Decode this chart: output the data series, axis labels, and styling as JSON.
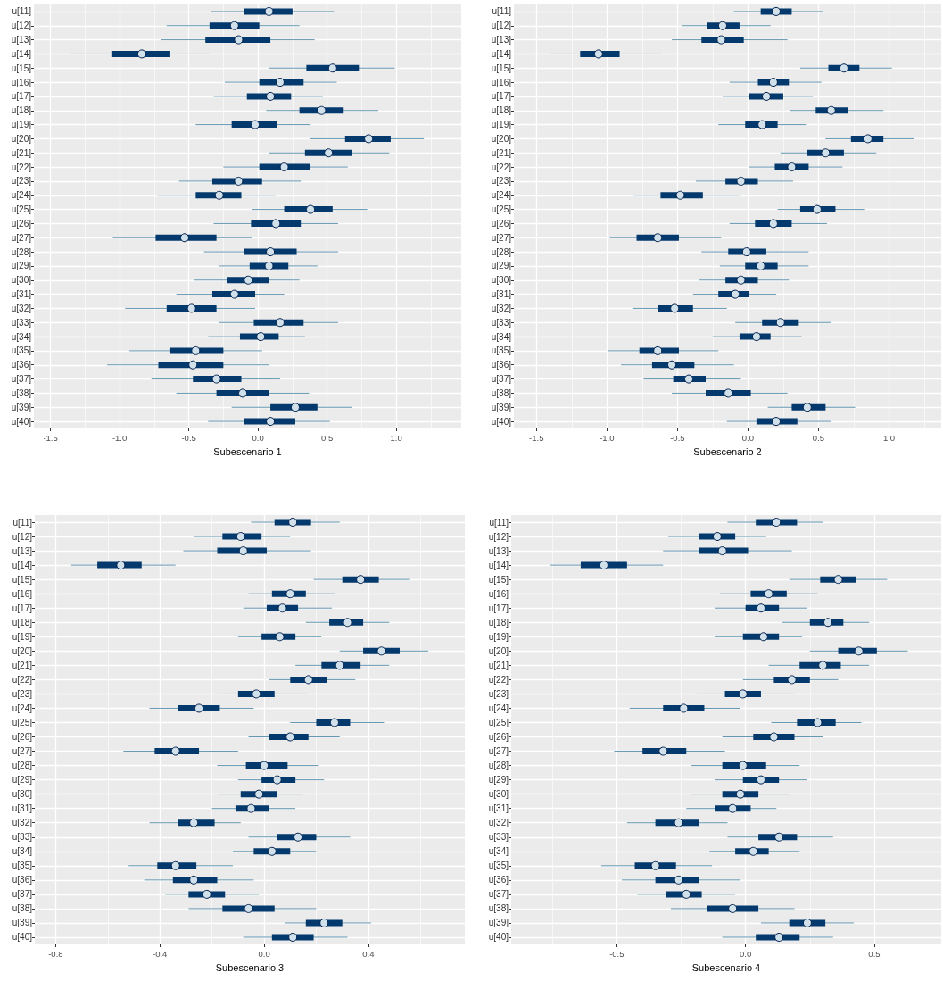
{
  "chart_data": [
    {
      "type": "box",
      "orientation": "horizontal",
      "xlabel": "Subescenario 1",
      "color": "#03396c",
      "grid": true,
      "categories": [
        "u[11]",
        "u[12]",
        "u[13]",
        "u[14]",
        "u[15]",
        "u[16]",
        "u[17]",
        "u[18]",
        "u[19]",
        "u[20]",
        "u[21]",
        "u[22]",
        "u[23]",
        "u[24]",
        "u[25]",
        "u[26]",
        "u[27]",
        "u[28]",
        "u[29]",
        "u[30]",
        "u[31]",
        "u[32]",
        "u[33]",
        "u[34]",
        "u[35]",
        "u[36]",
        "u[37]",
        "u[38]",
        "u[39]",
        "u[40]"
      ],
      "xlim": [
        -1.62,
        1.47
      ],
      "xticks": [
        -1.5,
        {
          "value": -1,
          "label": "-1.0"
        },
        -0.5,
        {
          "value": 0,
          "label": "0.0"
        },
        0.5,
        {
          "value": 1,
          "label": "1.0"
        }
      ],
      "boxes": [
        {
          "low": -0.34,
          "q1": -0.1,
          "median": 0.08,
          "q3": 0.25,
          "high": 0.55
        },
        {
          "low": -0.66,
          "q1": -0.35,
          "median": -0.17,
          "q3": 0.01,
          "high": 0.3
        },
        {
          "low": -0.7,
          "q1": -0.38,
          "median": -0.14,
          "q3": 0.09,
          "high": 0.41
        },
        {
          "low": -1.36,
          "q1": -1.06,
          "median": -0.84,
          "q3": -0.64,
          "high": -0.35
        },
        {
          "low": 0.08,
          "q1": 0.35,
          "median": 0.54,
          "q3": 0.73,
          "high": 0.99
        },
        {
          "low": -0.24,
          "q1": 0.01,
          "median": 0.16,
          "q3": 0.33,
          "high": 0.57
        },
        {
          "low": -0.32,
          "q1": -0.08,
          "median": 0.09,
          "q3": 0.24,
          "high": 0.47
        },
        {
          "low": 0.06,
          "q1": 0.3,
          "median": 0.46,
          "q3": 0.62,
          "high": 0.87
        },
        {
          "low": -0.45,
          "q1": -0.19,
          "median": -0.02,
          "q3": 0.14,
          "high": 0.38
        },
        {
          "low": 0.38,
          "q1": 0.63,
          "median": 0.8,
          "q3": 0.96,
          "high": 1.2
        },
        {
          "low": 0.08,
          "q1": 0.34,
          "median": 0.51,
          "q3": 0.68,
          "high": 0.95
        },
        {
          "low": -0.25,
          "q1": 0.01,
          "median": 0.19,
          "q3": 0.38,
          "high": 0.65
        },
        {
          "low": -0.57,
          "q1": -0.33,
          "median": -0.14,
          "q3": 0.03,
          "high": 0.31
        },
        {
          "low": -0.73,
          "q1": -0.45,
          "median": -0.28,
          "q3": -0.12,
          "high": 0.13
        },
        {
          "low": -0.04,
          "q1": 0.19,
          "median": 0.38,
          "q3": 0.54,
          "high": 0.79
        },
        {
          "low": -0.32,
          "q1": -0.05,
          "median": 0.13,
          "q3": 0.31,
          "high": 0.58
        },
        {
          "low": -1.05,
          "q1": -0.74,
          "median": -0.53,
          "q3": -0.3,
          "high": -0.04
        },
        {
          "low": -0.39,
          "q1": -0.1,
          "median": 0.09,
          "q3": 0.28,
          "high": 0.58
        },
        {
          "low": -0.28,
          "q1": -0.06,
          "median": 0.08,
          "q3": 0.22,
          "high": 0.43
        },
        {
          "low": -0.46,
          "q1": -0.22,
          "median": -0.07,
          "q3": 0.08,
          "high": 0.3
        },
        {
          "low": -0.59,
          "q1": -0.33,
          "median": -0.17,
          "q3": -0.02,
          "high": 0.19
        },
        {
          "low": -0.96,
          "q1": -0.66,
          "median": -0.48,
          "q3": -0.3,
          "high": -0.02
        },
        {
          "low": -0.28,
          "q1": -0.03,
          "median": 0.16,
          "q3": 0.33,
          "high": 0.58
        },
        {
          "low": -0.36,
          "q1": -0.13,
          "median": 0.02,
          "q3": 0.15,
          "high": 0.34
        },
        {
          "low": -0.93,
          "q1": -0.64,
          "median": -0.45,
          "q3": -0.25,
          "high": 0.03
        },
        {
          "low": -1.09,
          "q1": -0.72,
          "median": -0.47,
          "q3": -0.25,
          "high": 0.08
        },
        {
          "low": -0.77,
          "q1": -0.47,
          "median": -0.3,
          "q3": -0.12,
          "high": 0.16
        },
        {
          "low": -0.59,
          "q1": -0.3,
          "median": -0.11,
          "q3": 0.08,
          "high": 0.37
        },
        {
          "low": -0.19,
          "q1": 0.09,
          "median": 0.27,
          "q3": 0.43,
          "high": 0.68
        },
        {
          "low": -0.36,
          "q1": -0.1,
          "median": 0.09,
          "q3": 0.27,
          "high": 0.52
        }
      ]
    },
    {
      "type": "box",
      "orientation": "horizontal",
      "xlabel": "Subescenario 2",
      "color": "#03396c",
      "grid": true,
      "categories": [
        "u[11]",
        "u[12]",
        "u[13]",
        "u[14]",
        "u[15]",
        "u[16]",
        "u[17]",
        "u[18]",
        "u[19]",
        "u[20]",
        "u[21]",
        "u[22]",
        "u[23]",
        "u[24]",
        "u[25]",
        "u[26]",
        "u[27]",
        "u[28]",
        "u[29]",
        "u[30]",
        "u[31]",
        "u[32]",
        "u[33]",
        "u[34]",
        "u[35]",
        "u[36]",
        "u[37]",
        "u[38]",
        "u[39]",
        "u[40]"
      ],
      "xlim": [
        -1.66,
        1.37
      ],
      "xticks": [
        -1.5,
        {
          "value": -1,
          "label": "-1.0"
        },
        -0.5,
        {
          "value": 0,
          "label": "0.0"
        },
        0.5,
        {
          "value": 1,
          "label": "1.0"
        }
      ],
      "boxes": [
        {
          "low": -0.1,
          "q1": 0.09,
          "median": 0.2,
          "q3": 0.31,
          "high": 0.53
        },
        {
          "low": -0.47,
          "q1": -0.29,
          "median": -0.18,
          "q3": -0.06,
          "high": 0.16
        },
        {
          "low": -0.54,
          "q1": -0.33,
          "median": -0.19,
          "q3": -0.03,
          "high": 0.28
        },
        {
          "low": -1.4,
          "q1": -1.19,
          "median": -1.06,
          "q3": -0.91,
          "high": -0.61
        },
        {
          "low": 0.37,
          "q1": 0.57,
          "median": 0.68,
          "q3": 0.79,
          "high": 1.02
        },
        {
          "low": -0.13,
          "q1": 0.07,
          "median": 0.18,
          "q3": 0.29,
          "high": 0.52
        },
        {
          "low": -0.18,
          "q1": 0.01,
          "median": 0.13,
          "q3": 0.25,
          "high": 0.46
        },
        {
          "low": 0.3,
          "q1": 0.48,
          "median": 0.59,
          "q3": 0.71,
          "high": 0.96
        },
        {
          "low": -0.21,
          "q1": -0.02,
          "median": 0.1,
          "q3": 0.21,
          "high": 0.41
        },
        {
          "low": 0.55,
          "q1": 0.73,
          "median": 0.85,
          "q3": 0.96,
          "high": 1.18
        },
        {
          "low": 0.23,
          "q1": 0.42,
          "median": 0.55,
          "q3": 0.68,
          "high": 0.91
        },
        {
          "low": 0.01,
          "q1": 0.19,
          "median": 0.31,
          "q3": 0.43,
          "high": 0.67
        },
        {
          "low": -0.37,
          "q1": -0.16,
          "median": -0.05,
          "q3": 0.07,
          "high": 0.32
        },
        {
          "low": -0.81,
          "q1": -0.62,
          "median": -0.48,
          "q3": -0.32,
          "high": -0.05
        },
        {
          "low": 0.21,
          "q1": 0.37,
          "median": 0.49,
          "q3": 0.62,
          "high": 0.83
        },
        {
          "low": -0.13,
          "q1": 0.05,
          "median": 0.18,
          "q3": 0.31,
          "high": 0.56
        },
        {
          "low": -0.98,
          "q1": -0.79,
          "median": -0.64,
          "q3": -0.49,
          "high": -0.19
        },
        {
          "low": -0.33,
          "q1": -0.14,
          "median": -0.01,
          "q3": 0.13,
          "high": 0.43
        },
        {
          "low": -0.2,
          "q1": -0.02,
          "median": 0.09,
          "q3": 0.21,
          "high": 0.43
        },
        {
          "low": -0.35,
          "q1": -0.16,
          "median": -0.05,
          "q3": 0.07,
          "high": 0.29
        },
        {
          "low": -0.39,
          "q1": -0.21,
          "median": -0.09,
          "q3": 0.01,
          "high": 0.2
        },
        {
          "low": -0.82,
          "q1": -0.64,
          "median": -0.52,
          "q3": -0.39,
          "high": -0.15
        },
        {
          "low": -0.09,
          "q1": 0.1,
          "median": 0.23,
          "q3": 0.36,
          "high": 0.59
        },
        {
          "low": -0.25,
          "q1": -0.06,
          "median": 0.06,
          "q3": 0.16,
          "high": 0.38
        },
        {
          "low": -0.99,
          "q1": -0.77,
          "median": -0.64,
          "q3": -0.49,
          "high": -0.21
        },
        {
          "low": -0.9,
          "q1": -0.68,
          "median": -0.54,
          "q3": -0.38,
          "high": -0.1
        },
        {
          "low": -0.74,
          "q1": -0.53,
          "median": -0.42,
          "q3": -0.3,
          "high": -0.05
        },
        {
          "low": -0.54,
          "q1": -0.3,
          "median": -0.14,
          "q3": 0.02,
          "high": 0.28
        },
        {
          "low": 0.14,
          "q1": 0.31,
          "median": 0.42,
          "q3": 0.55,
          "high": 0.76
        },
        {
          "low": -0.15,
          "q1": 0.06,
          "median": 0.2,
          "q3": 0.35,
          "high": 0.59
        }
      ]
    },
    {
      "type": "box",
      "orientation": "horizontal",
      "xlabel": "Subescenario 3",
      "color": "#03396c",
      "grid": true,
      "categories": [
        "u[11]",
        "u[12]",
        "u[13]",
        "u[14]",
        "u[15]",
        "u[16]",
        "u[17]",
        "u[18]",
        "u[19]",
        "u[20]",
        "u[21]",
        "u[22]",
        "u[23]",
        "u[24]",
        "u[25]",
        "u[26]",
        "u[27]",
        "u[28]",
        "u[29]",
        "u[30]",
        "u[31]",
        "u[32]",
        "u[33]",
        "u[34]",
        "u[35]",
        "u[36]",
        "u[37]",
        "u[38]",
        "u[39]",
        "u[40]"
      ],
      "xlim": [
        -0.88,
        0.77
      ],
      "xticks": [
        -0.8,
        -0.4,
        {
          "value": 0,
          "label": "0.0"
        },
        0.4
      ],
      "boxes": [
        {
          "low": -0.05,
          "q1": 0.04,
          "median": 0.11,
          "q3": 0.18,
          "high": 0.29
        },
        {
          "low": -0.27,
          "q1": -0.16,
          "median": -0.09,
          "q3": -0.01,
          "high": 0.1
        },
        {
          "low": -0.31,
          "q1": -0.18,
          "median": -0.08,
          "q3": 0.01,
          "high": 0.18
        },
        {
          "low": -0.74,
          "q1": -0.64,
          "median": -0.55,
          "q3": -0.47,
          "high": -0.34
        },
        {
          "low": 0.19,
          "q1": 0.3,
          "median": 0.37,
          "q3": 0.44,
          "high": 0.56
        },
        {
          "low": -0.06,
          "q1": 0.03,
          "median": 0.1,
          "q3": 0.16,
          "high": 0.27
        },
        {
          "low": -0.08,
          "q1": 0.01,
          "median": 0.07,
          "q3": 0.13,
          "high": 0.26
        },
        {
          "low": 0.16,
          "q1": 0.25,
          "median": 0.32,
          "q3": 0.38,
          "high": 0.48
        },
        {
          "low": -0.1,
          "q1": -0.01,
          "median": 0.06,
          "q3": 0.12,
          "high": 0.22
        },
        {
          "low": 0.29,
          "q1": 0.38,
          "median": 0.45,
          "q3": 0.52,
          "high": 0.63
        },
        {
          "low": 0.12,
          "q1": 0.22,
          "median": 0.29,
          "q3": 0.37,
          "high": 0.48
        },
        {
          "low": 0.02,
          "q1": 0.1,
          "median": 0.17,
          "q3": 0.24,
          "high": 0.35
        },
        {
          "low": -0.18,
          "q1": -0.1,
          "median": -0.03,
          "q3": 0.04,
          "high": 0.17
        },
        {
          "low": -0.44,
          "q1": -0.33,
          "median": -0.25,
          "q3": -0.17,
          "high": -0.04
        },
        {
          "low": 0.1,
          "q1": 0.2,
          "median": 0.27,
          "q3": 0.33,
          "high": 0.46
        },
        {
          "low": -0.06,
          "q1": 0.02,
          "median": 0.1,
          "q3": 0.17,
          "high": 0.29
        },
        {
          "low": -0.54,
          "q1": -0.42,
          "median": -0.34,
          "q3": -0.25,
          "high": -0.1
        },
        {
          "low": -0.18,
          "q1": -0.07,
          "median": 0.0,
          "q3": 0.09,
          "high": 0.21
        },
        {
          "low": -0.1,
          "q1": -0.01,
          "median": 0.05,
          "q3": 0.12,
          "high": 0.23
        },
        {
          "low": -0.18,
          "q1": -0.09,
          "median": -0.02,
          "q3": 0.05,
          "high": 0.15
        },
        {
          "low": -0.2,
          "q1": -0.11,
          "median": -0.05,
          "q3": 0.02,
          "high": 0.12
        },
        {
          "low": -0.44,
          "q1": -0.33,
          "median": -0.27,
          "q3": -0.19,
          "high": -0.09
        },
        {
          "low": -0.06,
          "q1": 0.05,
          "median": 0.13,
          "q3": 0.2,
          "high": 0.33
        },
        {
          "low": -0.12,
          "q1": -0.04,
          "median": 0.03,
          "q3": 0.1,
          "high": 0.2
        },
        {
          "low": -0.52,
          "q1": -0.41,
          "median": -0.34,
          "q3": -0.26,
          "high": -0.12
        },
        {
          "low": -0.46,
          "q1": -0.35,
          "median": -0.27,
          "q3": -0.18,
          "high": -0.04
        },
        {
          "low": -0.38,
          "q1": -0.29,
          "median": -0.22,
          "q3": -0.15,
          "high": -0.02
        },
        {
          "low": -0.29,
          "q1": -0.16,
          "median": -0.06,
          "q3": 0.04,
          "high": 0.2
        },
        {
          "low": 0.08,
          "q1": 0.16,
          "median": 0.23,
          "q3": 0.3,
          "high": 0.41
        },
        {
          "low": -0.08,
          "q1": 0.03,
          "median": 0.11,
          "q3": 0.19,
          "high": 0.32
        }
      ]
    },
    {
      "type": "box",
      "orientation": "horizontal",
      "xlabel": "Subescenario 4",
      "color": "#03396c",
      "grid": true,
      "categories": [
        "u[11]",
        "u[12]",
        "u[13]",
        "u[14]",
        "u[15]",
        "u[16]",
        "u[17]",
        "u[18]",
        "u[19]",
        "u[20]",
        "u[21]",
        "u[22]",
        "u[23]",
        "u[24]",
        "u[25]",
        "u[26]",
        "u[27]",
        "u[28]",
        "u[29]",
        "u[30]",
        "u[31]",
        "u[32]",
        "u[33]",
        "u[34]",
        "u[35]",
        "u[36]",
        "u[37]",
        "u[38]",
        "u[39]",
        "u[40]"
      ],
      "xlim": [
        -0.91,
        0.76
      ],
      "xticks": [
        -0.5,
        {
          "value": 0,
          "label": "0.0"
        },
        0.5
      ],
      "boxes": [
        {
          "low": -0.07,
          "q1": 0.04,
          "median": 0.12,
          "q3": 0.2,
          "high": 0.3
        },
        {
          "low": -0.3,
          "q1": -0.18,
          "median": -0.11,
          "q3": -0.04,
          "high": 0.08
        },
        {
          "low": -0.32,
          "q1": -0.18,
          "median": -0.09,
          "q3": 0.01,
          "high": 0.18
        },
        {
          "low": -0.76,
          "q1": -0.64,
          "median": -0.55,
          "q3": -0.46,
          "high": -0.32
        },
        {
          "low": 0.17,
          "q1": 0.29,
          "median": 0.36,
          "q3": 0.43,
          "high": 0.55
        },
        {
          "low": -0.1,
          "q1": 0.02,
          "median": 0.09,
          "q3": 0.16,
          "high": 0.28
        },
        {
          "low": -0.12,
          "q1": 0.0,
          "median": 0.06,
          "q3": 0.13,
          "high": 0.24
        },
        {
          "low": 0.14,
          "q1": 0.25,
          "median": 0.32,
          "q3": 0.38,
          "high": 0.48
        },
        {
          "low": -0.12,
          "q1": -0.01,
          "median": 0.07,
          "q3": 0.13,
          "high": 0.22
        },
        {
          "low": 0.25,
          "q1": 0.36,
          "median": 0.44,
          "q3": 0.51,
          "high": 0.63
        },
        {
          "low": 0.09,
          "q1": 0.21,
          "median": 0.3,
          "q3": 0.37,
          "high": 0.48
        },
        {
          "low": -0.01,
          "q1": 0.11,
          "median": 0.18,
          "q3": 0.25,
          "high": 0.36
        },
        {
          "low": -0.19,
          "q1": -0.08,
          "median": -0.01,
          "q3": 0.06,
          "high": 0.19
        },
        {
          "low": -0.45,
          "q1": -0.32,
          "median": -0.24,
          "q3": -0.16,
          "high": -0.02
        },
        {
          "low": 0.1,
          "q1": 0.2,
          "median": 0.28,
          "q3": 0.35,
          "high": 0.45
        },
        {
          "low": -0.09,
          "q1": 0.03,
          "median": 0.11,
          "q3": 0.19,
          "high": 0.3
        },
        {
          "low": -0.51,
          "q1": -0.4,
          "median": -0.32,
          "q3": -0.23,
          "high": -0.08
        },
        {
          "low": -0.21,
          "q1": -0.09,
          "median": -0.01,
          "q3": 0.08,
          "high": 0.21
        },
        {
          "low": -0.12,
          "q1": -0.01,
          "median": 0.06,
          "q3": 0.13,
          "high": 0.24
        },
        {
          "low": -0.21,
          "q1": -0.09,
          "median": -0.02,
          "q3": 0.05,
          "high": 0.17
        },
        {
          "low": -0.23,
          "q1": -0.12,
          "median": -0.05,
          "q3": 0.02,
          "high": 0.12
        },
        {
          "low": -0.46,
          "q1": -0.35,
          "median": -0.26,
          "q3": -0.18,
          "high": -0.07
        },
        {
          "low": -0.07,
          "q1": 0.05,
          "median": 0.13,
          "q3": 0.2,
          "high": 0.34
        },
        {
          "low": -0.14,
          "q1": -0.04,
          "median": 0.03,
          "q3": 0.09,
          "high": 0.21
        },
        {
          "low": -0.56,
          "q1": -0.43,
          "median": -0.35,
          "q3": -0.27,
          "high": -0.13
        },
        {
          "low": -0.48,
          "q1": -0.35,
          "median": -0.26,
          "q3": -0.18,
          "high": -0.02
        },
        {
          "low": -0.42,
          "q1": -0.31,
          "median": -0.23,
          "q3": -0.17,
          "high": -0.04
        },
        {
          "low": -0.29,
          "q1": -0.15,
          "median": -0.05,
          "q3": 0.05,
          "high": 0.19
        },
        {
          "low": 0.06,
          "q1": 0.17,
          "median": 0.24,
          "q3": 0.31,
          "high": 0.42
        },
        {
          "low": -0.09,
          "q1": 0.04,
          "median": 0.13,
          "q3": 0.21,
          "high": 0.34
        }
      ]
    }
  ]
}
